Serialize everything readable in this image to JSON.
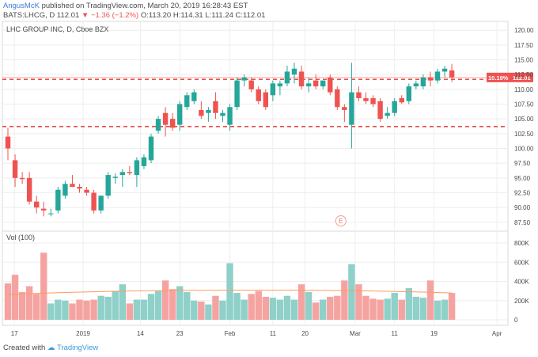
{
  "header": {
    "author": "AngusMcK",
    "published": "published on TradingView.com, March 20, 2019 16:28:43 EST"
  },
  "ticker": {
    "symbol": "BATS:LHCG, D",
    "price": "112.01",
    "change": "▼ −1.36 (−1.2%)",
    "ohlc": "O:113.20 H:114.31 L:111.24 C:112.01"
  },
  "chart_data": {
    "type": "candlestick",
    "title": "LHC GROUP INC, D, Cboe BZX",
    "volume_label": "Vol (100)",
    "price_axis": {
      "range": [
        86.0,
        121.5
      ],
      "ticks": [
        "120.00",
        "117.50",
        "115.00",
        "112.50",
        "110.00",
        "107.50",
        "105.00",
        "102.50",
        "100.00",
        "97.50",
        "95.00",
        "92.50",
        "90.00",
        "87.50"
      ]
    },
    "volume_axis": {
      "range": [
        0,
        850000
      ],
      "ticks": [
        "800K",
        "600K",
        "400K",
        "200K",
        "0"
      ]
    },
    "x_ticks": [
      "17",
      "2019",
      "14",
      "23",
      "Feb",
      "11",
      "20",
      "Mar",
      "11",
      "19",
      "Apr"
    ],
    "last_price_label": "112.01",
    "pct_label": "10.19%",
    "event_marker": "E",
    "ma_volume": 280000,
    "horizontal_lines": [
      {
        "price": 111.7,
        "style": "dashed"
      },
      {
        "price": 103.7,
        "style": "dashed"
      }
    ],
    "candles": [
      {
        "o": 102.0,
        "h": 103.5,
        "l": 98.0,
        "c": 100.0,
        "v": 380000
      },
      {
        "o": 98.0,
        "h": 99.0,
        "l": 93.5,
        "c": 95.0,
        "v": 470000
      },
      {
        "o": 95.0,
        "h": 96.0,
        "l": 94.0,
        "c": 94.8,
        "v": 290000
      },
      {
        "o": 95.0,
        "h": 96.0,
        "l": 90.5,
        "c": 91.0,
        "v": 350000
      },
      {
        "o": 91.0,
        "h": 92.0,
        "l": 89.0,
        "c": 90.0,
        "v": 270000
      },
      {
        "o": 89.8,
        "h": 91.0,
        "l": 88.5,
        "c": 89.5,
        "v": 700000
      },
      {
        "o": 89.0,
        "h": 89.8,
        "l": 88.5,
        "c": 89.0,
        "v": 170000
      },
      {
        "o": 89.5,
        "h": 93.5,
        "l": 89.0,
        "c": 93.0,
        "v": 210000
      },
      {
        "o": 92.0,
        "h": 94.5,
        "l": 91.5,
        "c": 94.0,
        "v": 200000
      },
      {
        "o": 94.0,
        "h": 95.5,
        "l": 93.5,
        "c": 93.5,
        "v": 170000
      },
      {
        "o": 93.5,
        "h": 94.0,
        "l": 92.5,
        "c": 93.2,
        "v": 210000
      },
      {
        "o": 93.0,
        "h": 93.5,
        "l": 92.0,
        "c": 92.5,
        "v": 200000
      },
      {
        "o": 92.5,
        "h": 93.0,
        "l": 89.0,
        "c": 89.5,
        "v": 210000
      },
      {
        "o": 89.5,
        "h": 92.0,
        "l": 89.0,
        "c": 92.0,
        "v": 250000
      },
      {
        "o": 92.0,
        "h": 96.0,
        "l": 91.5,
        "c": 95.5,
        "v": 240000
      },
      {
        "o": 95.0,
        "h": 95.8,
        "l": 94.0,
        "c": 95.2,
        "v": 300000
      },
      {
        "o": 95.5,
        "h": 96.5,
        "l": 93.5,
        "c": 96.0,
        "v": 370000
      },
      {
        "o": 96.0,
        "h": 97.0,
        "l": 95.5,
        "c": 95.8,
        "v": 170000
      },
      {
        "o": 95.5,
        "h": 98.5,
        "l": 93.5,
        "c": 98.0,
        "v": 210000
      },
      {
        "o": 97.0,
        "h": 99.0,
        "l": 96.5,
        "c": 98.5,
        "v": 210000
      },
      {
        "o": 98.0,
        "h": 102.5,
        "l": 97.5,
        "c": 102.0,
        "v": 270000
      },
      {
        "o": 103.0,
        "h": 105.5,
        "l": 102.5,
        "c": 105.0,
        "v": 300000
      },
      {
        "o": 106.0,
        "h": 107.0,
        "l": 102.0,
        "c": 104.0,
        "v": 410000
      },
      {
        "o": 105.0,
        "h": 106.0,
        "l": 103.0,
        "c": 103.5,
        "v": 320000
      },
      {
        "o": 104.0,
        "h": 108.0,
        "l": 103.0,
        "c": 107.5,
        "v": 350000
      },
      {
        "o": 107.0,
        "h": 109.5,
        "l": 106.5,
        "c": 109.0,
        "v": 290000
      },
      {
        "o": 108.0,
        "h": 110.0,
        "l": 107.5,
        "c": 109.5,
        "v": 200000
      },
      {
        "o": 106.5,
        "h": 108.0,
        "l": 105.0,
        "c": 105.5,
        "v": 190000
      },
      {
        "o": 106.0,
        "h": 107.0,
        "l": 104.5,
        "c": 106.5,
        "v": 160000
      },
      {
        "o": 108.0,
        "h": 109.5,
        "l": 105.0,
        "c": 106.0,
        "v": 250000
      },
      {
        "o": 105.5,
        "h": 106.5,
        "l": 104.5,
        "c": 106.0,
        "v": 200000
      },
      {
        "o": 104.0,
        "h": 107.5,
        "l": 103.0,
        "c": 107.0,
        "v": 590000
      },
      {
        "o": 107.0,
        "h": 112.0,
        "l": 106.5,
        "c": 111.5,
        "v": 280000
      },
      {
        "o": 111.5,
        "h": 112.5,
        "l": 110.5,
        "c": 112.0,
        "v": 210000
      },
      {
        "o": 111.5,
        "h": 112.0,
        "l": 109.5,
        "c": 110.0,
        "v": 270000
      },
      {
        "o": 110.0,
        "h": 110.5,
        "l": 107.5,
        "c": 108.0,
        "v": 300000
      },
      {
        "o": 109.5,
        "h": 110.0,
        "l": 106.5,
        "c": 107.0,
        "v": 240000
      },
      {
        "o": 109.0,
        "h": 111.5,
        "l": 108.0,
        "c": 111.0,
        "v": 230000
      },
      {
        "o": 110.5,
        "h": 111.5,
        "l": 109.0,
        "c": 111.0,
        "v": 210000
      },
      {
        "o": 111.0,
        "h": 114.0,
        "l": 110.5,
        "c": 113.0,
        "v": 250000
      },
      {
        "o": 112.5,
        "h": 114.5,
        "l": 111.0,
        "c": 113.5,
        "v": 210000
      },
      {
        "o": 113.0,
        "h": 114.0,
        "l": 110.0,
        "c": 110.5,
        "v": 370000
      },
      {
        "o": 110.5,
        "h": 112.0,
        "l": 109.5,
        "c": 111.0,
        "v": 290000
      },
      {
        "o": 111.5,
        "h": 112.5,
        "l": 110.0,
        "c": 110.5,
        "v": 180000
      },
      {
        "o": 110.5,
        "h": 111.5,
        "l": 110.0,
        "c": 111.5,
        "v": 210000
      },
      {
        "o": 112.0,
        "h": 112.5,
        "l": 109.0,
        "c": 109.5,
        "v": 240000
      },
      {
        "o": 110.0,
        "h": 110.5,
        "l": 106.5,
        "c": 107.0,
        "v": 250000
      },
      {
        "o": 107.0,
        "h": 107.5,
        "l": 104.5,
        "c": 106.5,
        "v": 410000
      },
      {
        "o": 104.0,
        "h": 114.5,
        "l": 100.0,
        "c": 109.5,
        "v": 580000
      },
      {
        "o": 109.5,
        "h": 110.5,
        "l": 108.0,
        "c": 108.5,
        "v": 370000
      },
      {
        "o": 108.5,
        "h": 109.5,
        "l": 107.5,
        "c": 108.0,
        "v": 250000
      },
      {
        "o": 108.5,
        "h": 109.0,
        "l": 107.0,
        "c": 107.5,
        "v": 220000
      },
      {
        "o": 108.0,
        "h": 108.5,
        "l": 104.5,
        "c": 105.0,
        "v": 210000
      },
      {
        "o": 105.5,
        "h": 107.0,
        "l": 105.0,
        "c": 106.0,
        "v": 220000
      },
      {
        "o": 106.0,
        "h": 108.5,
        "l": 105.5,
        "c": 108.0,
        "v": 280000
      },
      {
        "o": 108.5,
        "h": 109.0,
        "l": 107.5,
        "c": 107.8,
        "v": 210000
      },
      {
        "o": 108.0,
        "h": 111.0,
        "l": 107.5,
        "c": 110.5,
        "v": 330000
      },
      {
        "o": 110.5,
        "h": 111.5,
        "l": 110.0,
        "c": 111.0,
        "v": 240000
      },
      {
        "o": 110.5,
        "h": 112.5,
        "l": 110.0,
        "c": 112.0,
        "v": 230000
      },
      {
        "o": 112.0,
        "h": 113.0,
        "l": 110.5,
        "c": 111.5,
        "v": 410000
      },
      {
        "o": 111.5,
        "h": 113.5,
        "l": 111.0,
        "c": 113.0,
        "v": 200000
      },
      {
        "o": 113.0,
        "h": 114.0,
        "l": 112.0,
        "c": 113.5,
        "v": 210000
      },
      {
        "o": 113.2,
        "h": 114.31,
        "l": 111.24,
        "c": 112.01,
        "v": 280000
      }
    ]
  },
  "colors": {
    "up": "#26a69a",
    "down": "#ef5350",
    "up_vol": "#8fd0c9",
    "down_vol": "#f5a3a1",
    "ma": "#ff9a5c",
    "axis_text": "#4a4a4a",
    "grid": "#eeeeee",
    "label_bg": "#ef5350",
    "brand": "#3a7bd5"
  },
  "footer": {
    "created_with": "Created with",
    "brand": "TradingView"
  }
}
